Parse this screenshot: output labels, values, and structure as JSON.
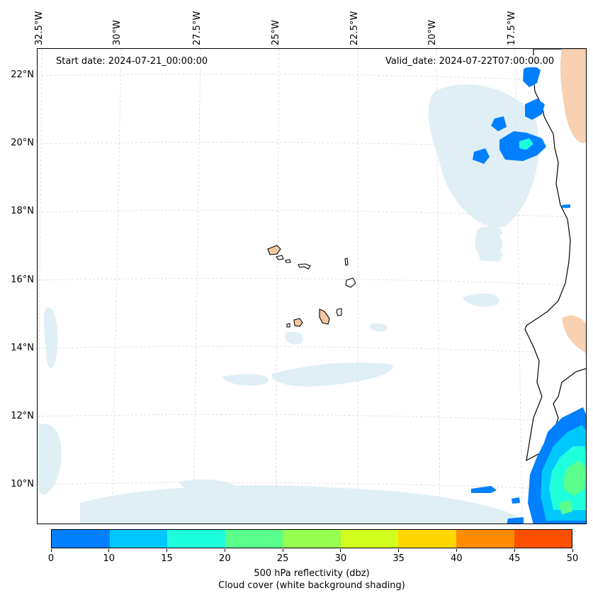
{
  "map": {
    "start_label": "Start date: 2024-07-21_00:00:00",
    "valid_label": "Valid_date: 2024-07-22T07:00:00.00",
    "lon_labels": [
      "32.5°W",
      "30°W",
      "27.5°W",
      "25°W",
      "22.5°W",
      "20°W",
      "17.5°W"
    ],
    "lat_labels": [
      "22°N",
      "20°N",
      "18°N",
      "16°N",
      "14°N",
      "12°N",
      "10°N"
    ],
    "colors": {
      "coast": "#000000",
      "land": "#f6c9a3",
      "cloud": "#cfe6ee",
      "grid": "#cccccc"
    }
  },
  "colorbar": {
    "ticks": [
      "0",
      "10",
      "15",
      "20",
      "25",
      "30",
      "35",
      "40",
      "45",
      "50"
    ],
    "colors": [
      "#0080ff",
      "#00c8ff",
      "#1effdc",
      "#5aff8c",
      "#96ff50",
      "#d2ff1e",
      "#ffd700",
      "#ff8c00",
      "#ff5000"
    ],
    "title": "500 hPa reflectivity (dbz)",
    "subtitle": "Cloud cover (white background shading)"
  }
}
